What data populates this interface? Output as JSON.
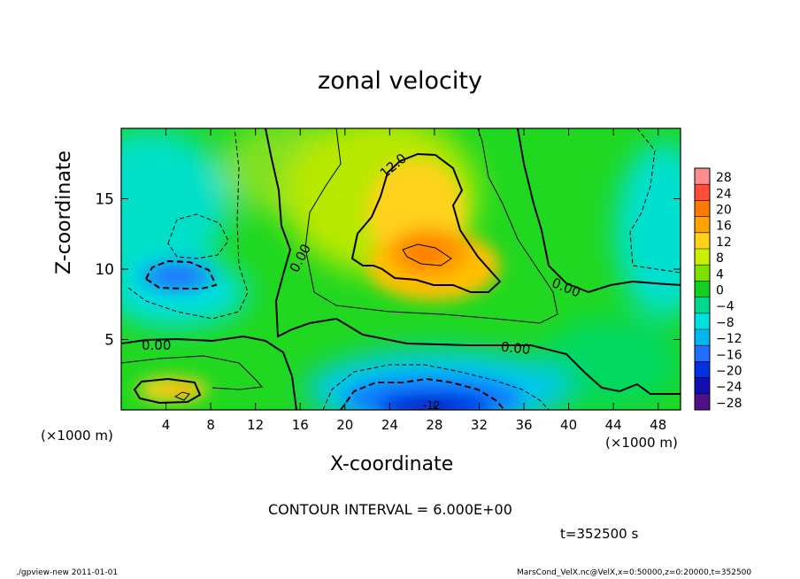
{
  "chart_data": {
    "type": "heatmap",
    "title": "zonal velocity",
    "xlabel": "X-coordinate",
    "ylabel": "Z-coordinate",
    "x_unit_label": "(×1000 m)",
    "xlim": [
      0,
      50
    ],
    "ylim": [
      0,
      20
    ],
    "x_ticks": [
      4,
      8,
      12,
      16,
      20,
      24,
      28,
      32,
      36,
      40,
      44,
      48
    ],
    "y_ticks": [
      5,
      10,
      15
    ],
    "colorbar": {
      "levels": [
        -28,
        -24,
        -20,
        -16,
        -12,
        -8,
        -4,
        0,
        4,
        8,
        12,
        16,
        20,
        24,
        28
      ],
      "labels": [
        "28",
        "24",
        "20",
        "16",
        "12",
        "8",
        "4",
        "0",
        "−4",
        "−8",
        "−12",
        "−16",
        "−20",
        "−24",
        "−28"
      ],
      "colors": [
        "#ff8c8c",
        "#ff4d3a",
        "#ff7a00",
        "#ffa300",
        "#ffd21a",
        "#c8f000",
        "#7fe000",
        "#10d020",
        "#00d890",
        "#00e0e0",
        "#00b8f0",
        "#2070ff",
        "#0030e0",
        "#1010b0",
        "#50108c"
      ]
    },
    "contour_labels": [
      "12.0",
      "0.00",
      "0.00",
      "0.00",
      "0.00",
      "-12"
    ],
    "contour_interval_text": "CONTOUR INTERVAL = 6.000E+00",
    "time_text": "t=352500 s",
    "field_features": [
      {
        "x": 27.5,
        "z": 11,
        "value": 20
      },
      {
        "x": 28,
        "z": 0.8,
        "value": -24
      },
      {
        "x": 5,
        "z": 9.5,
        "value": -16
      },
      {
        "x": 4.5,
        "z": 1.3,
        "value": 14
      },
      {
        "x": 48,
        "z": 12,
        "value": -8
      },
      {
        "x": 1.5,
        "z": 14,
        "value": -8
      }
    ]
  },
  "footer": {
    "left": "./gpview-new   2011-01-01",
    "right": "MarsCond_VelX.nc@VelX,x=0:50000,z=0:20000,t=352500"
  }
}
